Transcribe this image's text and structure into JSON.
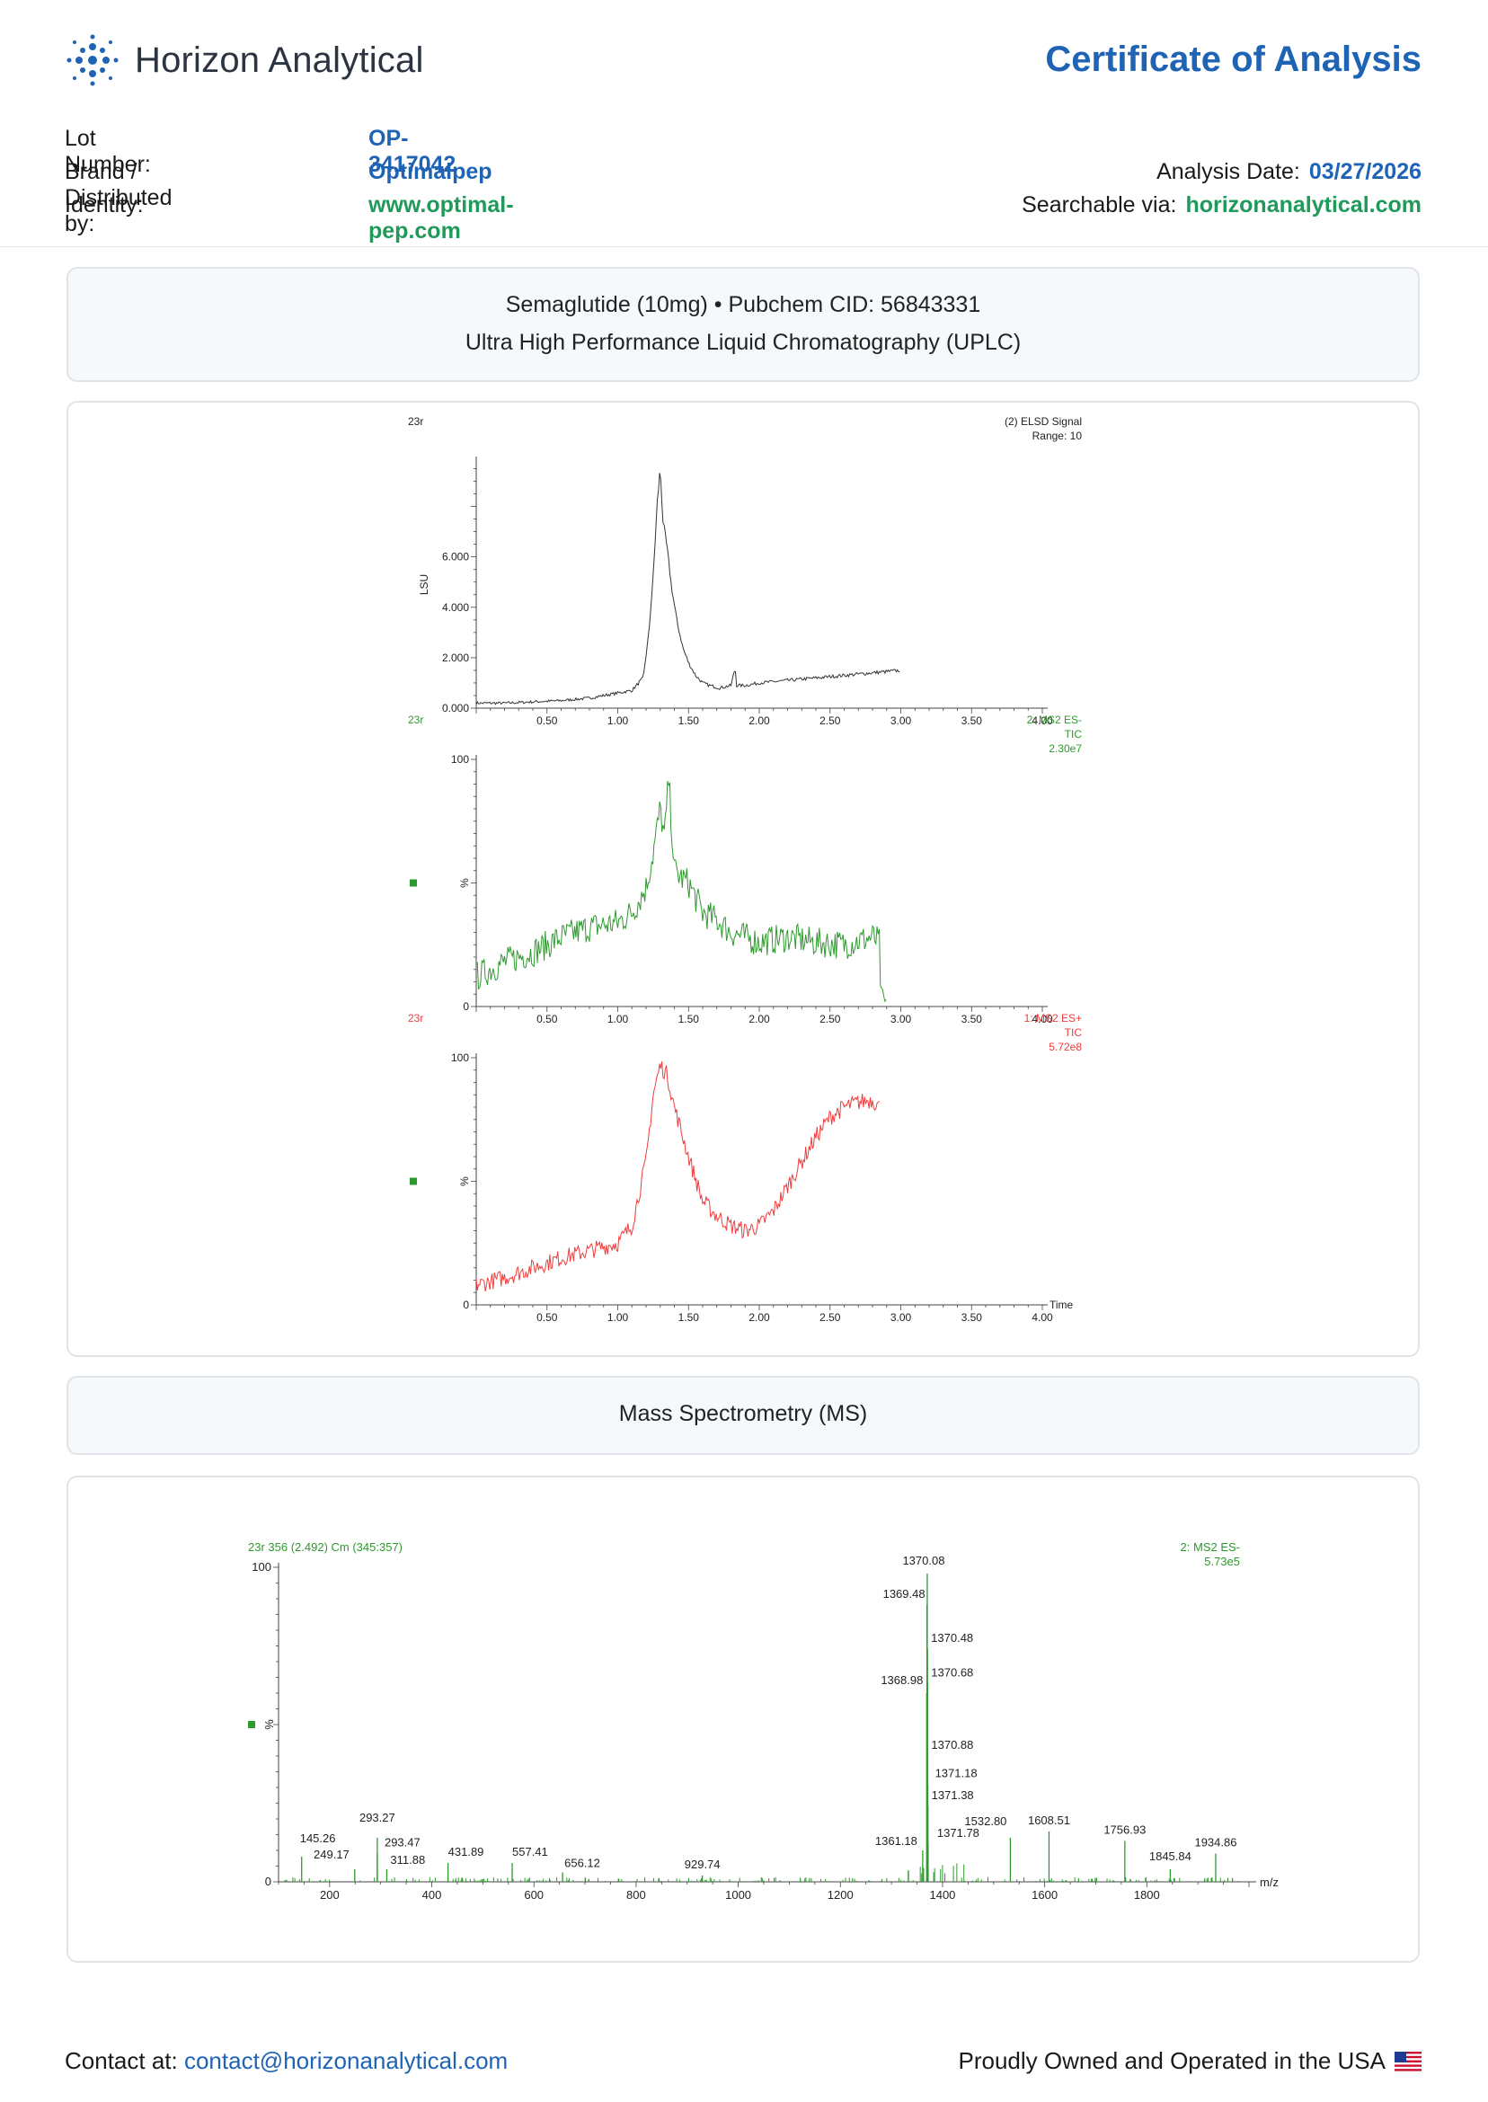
{
  "header": {
    "logo_text": "Horizon Analytical",
    "title": "Certificate of Analysis",
    "lot_label": "Lot Number:",
    "lot_value": "OP-3417042",
    "brand_label": "Brand / Distributed by:",
    "brand_value": "Optimalpep",
    "identity_label": "Identity:",
    "identity_value": "www.optimal-pep.com",
    "analysis_date_label": "Analysis Date:",
    "analysis_date_value": "03/27/2026",
    "searchable_label": "Searchable via:",
    "searchable_value": "horizonanalytical.com"
  },
  "uplc_section": {
    "line1": "Semaglutide (10mg) • Pubchem CID: 56843331",
    "line2": "Ultra High Performance Liquid Chromatography (UPLC)"
  },
  "ms_section": {
    "title": "Mass Spectrometry (MS)"
  },
  "footer": {
    "contact_label": "Contact at:",
    "contact_email": "contact@horizonanalytical.com",
    "usa_text": "Proudly Owned and Operated in the USA"
  },
  "colors": {
    "accent_blue": "#1f63b5",
    "accent_green": "#1f9a5a",
    "trace_green": "#2e9a2e",
    "trace_red": "#f03c3c"
  },
  "chart_data": [
    {
      "type": "line",
      "sample_label": "23r",
      "legend": [
        "(2) ELSD Signal",
        "Range: 10"
      ],
      "ylabel": "LSU",
      "xlim": [
        0,
        4.0
      ],
      "ylim": [
        0,
        9.8
      ],
      "x_ticks": [
        "0.50",
        "1.00",
        "1.50",
        "2.00",
        "2.50",
        "3.00",
        "3.50",
        "4.00"
      ],
      "y_ticks": [
        "0.000",
        "2.000",
        "4.000",
        "6.000"
      ],
      "x": [
        0.0,
        0.2,
        0.4,
        0.6,
        0.8,
        1.0,
        1.1,
        1.18,
        1.22,
        1.25,
        1.28,
        1.3,
        1.32,
        1.35,
        1.38,
        1.42,
        1.46,
        1.5,
        1.55,
        1.6,
        1.65,
        1.72,
        1.8,
        1.83,
        1.84,
        1.9,
        2.0,
        2.2,
        2.4,
        2.6,
        2.8,
        3.0
      ],
      "y": [
        0.2,
        0.2,
        0.25,
        0.3,
        0.4,
        0.6,
        0.7,
        1.2,
        3.0,
        5.2,
        8.2,
        9.5,
        7.4,
        6.3,
        4.8,
        3.4,
        2.4,
        1.8,
        1.3,
        1.0,
        0.9,
        0.8,
        0.9,
        1.6,
        0.9,
        0.9,
        1.0,
        1.1,
        1.2,
        1.3,
        1.4,
        1.5
      ]
    },
    {
      "type": "line",
      "sample_label": "23r",
      "legend": [
        "2: MS2 ES-",
        "TIC",
        "2.30e7"
      ],
      "ylabel": "%",
      "xlim": [
        0,
        4.0
      ],
      "ylim": [
        0,
        100
      ],
      "x_ticks": [
        "0.50",
        "1.00",
        "1.50",
        "2.00",
        "2.50",
        "3.00",
        "3.50",
        "4.00"
      ],
      "y_ticks": [
        "0",
        "100"
      ],
      "x": [
        0.0,
        0.2,
        0.4,
        0.6,
        0.8,
        1.0,
        1.1,
        1.2,
        1.25,
        1.3,
        1.33,
        1.36,
        1.4,
        1.45,
        1.5,
        1.6,
        1.7,
        1.8,
        1.9,
        2.0,
        2.2,
        2.4,
        2.6,
        2.8,
        2.85,
        2.86,
        2.9
      ],
      "y": [
        12,
        18,
        22,
        28,
        32,
        34,
        38,
        48,
        62,
        80,
        68,
        92,
        55,
        52,
        50,
        38,
        35,
        30,
        28,
        26,
        28,
        26,
        25,
        28,
        26,
        2,
        1
      ]
    },
    {
      "type": "line",
      "sample_label": "23r",
      "legend": [
        "1: MS2 ES+",
        "TIC",
        "5.72e8"
      ],
      "ylabel": "%",
      "xlabel": "Time",
      "xlim": [
        0,
        4.0
      ],
      "ylim": [
        0,
        100
      ],
      "x_ticks": [
        "0.50",
        "1.00",
        "1.50",
        "2.00",
        "2.50",
        "3.00",
        "3.50",
        "4.00"
      ],
      "y_ticks": [
        "0",
        "100"
      ],
      "x": [
        0.0,
        0.2,
        0.4,
        0.6,
        0.8,
        1.0,
        1.1,
        1.2,
        1.25,
        1.3,
        1.35,
        1.4,
        1.5,
        1.6,
        1.7,
        1.8,
        1.9,
        2.0,
        2.1,
        2.2,
        2.3,
        2.4,
        2.5,
        2.6,
        2.7,
        2.8,
        2.85
      ],
      "y": [
        8,
        11,
        15,
        19,
        22,
        25,
        32,
        58,
        85,
        97,
        93,
        80,
        60,
        42,
        36,
        32,
        30,
        32,
        38,
        48,
        58,
        68,
        76,
        80,
        82,
        83,
        80
      ]
    },
    {
      "type": "bar",
      "sample_label": "23r 356 (2.492) Cm (345:357)",
      "legend": [
        "2: MS2 ES-",
        "5.73e5"
      ],
      "ylabel": "%",
      "xlabel": "m/z",
      "xlim": [
        100,
        2000
      ],
      "ylim": [
        0,
        100
      ],
      "x_ticks": [
        "200",
        "400",
        "600",
        "800",
        "1000",
        "1200",
        "1400",
        "1600",
        "1800"
      ],
      "y_ticks": [
        "0",
        "100"
      ],
      "peaks": [
        {
          "mz": 145.26,
          "rel": 8
        },
        {
          "mz": 249.17,
          "rel": 4
        },
        {
          "mz": 293.27,
          "rel": 14
        },
        {
          "mz": 293.47,
          "rel": 9
        },
        {
          "mz": 311.88,
          "rel": 4
        },
        {
          "mz": 431.89,
          "rel": 6
        },
        {
          "mz": 557.41,
          "rel": 6
        },
        {
          "mz": 656.12,
          "rel": 3
        },
        {
          "mz": 929.74,
          "rel": 2
        },
        {
          "mz": 1361.18,
          "rel": 10
        },
        {
          "mz": 1368.98,
          "rel": 60
        },
        {
          "mz": 1369.48,
          "rel": 88
        },
        {
          "mz": 1370.08,
          "rel": 98
        },
        {
          "mz": 1370.48,
          "rel": 74
        },
        {
          "mz": 1370.68,
          "rel": 63
        },
        {
          "mz": 1370.88,
          "rel": 40
        },
        {
          "mz": 1371.18,
          "rel": 31
        },
        {
          "mz": 1371.38,
          "rel": 24
        },
        {
          "mz": 1371.78,
          "rel": 12
        },
        {
          "mz": 1532.8,
          "rel": 14
        },
        {
          "mz": 1608.51,
          "rel": 16
        },
        {
          "mz": 1756.93,
          "rel": 13
        },
        {
          "mz": 1845.84,
          "rel": 4
        },
        {
          "mz": 1934.86,
          "rel": 9
        }
      ]
    }
  ]
}
